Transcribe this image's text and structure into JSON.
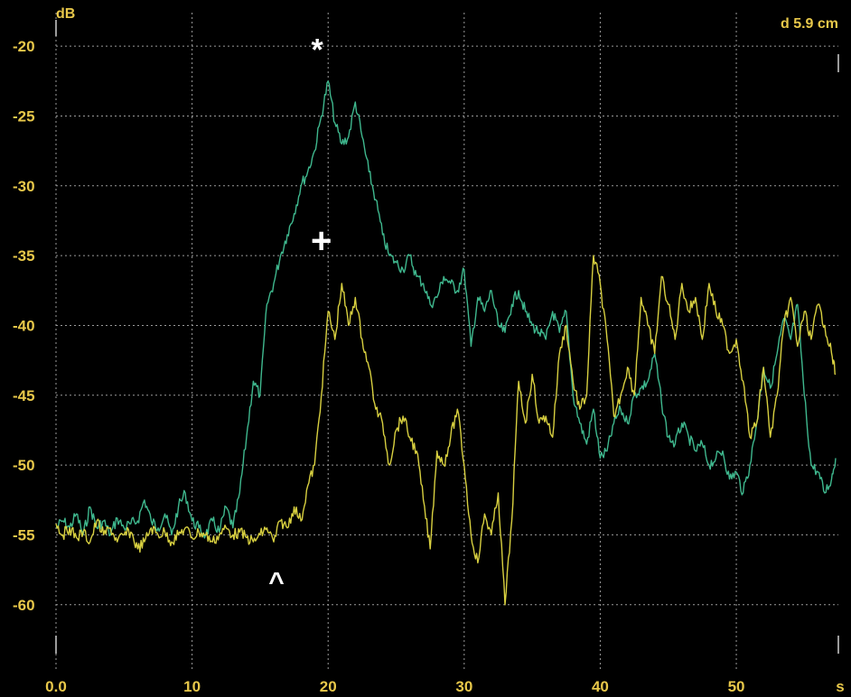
{
  "chart_data": {
    "type": "line",
    "xlabel": "s",
    "ylabel": "dB",
    "top_right_label": "d 5.9 cm",
    "xlim": [
      0,
      57.5
    ],
    "ylim": [
      -64.8,
      -17.6
    ],
    "x_ticks": [
      "0.0",
      "10",
      "20",
      "30",
      "40",
      "50",
      "s"
    ],
    "y_ticks": [
      "-20",
      "-25",
      "-30",
      "-35",
      "-40",
      "-45",
      "-50",
      "-55",
      "-60"
    ],
    "grid": true,
    "colors": {
      "background": "#000000",
      "axis_text": "#e8c84a",
      "annotations": "#ffffff"
    },
    "annotations": [
      {
        "text": "*",
        "x": 19.2,
        "y": -21.0
      },
      {
        "text": "+",
        "x": 19.5,
        "y": -34.8
      },
      {
        "text": "^",
        "x": 16.2,
        "y": -59.0
      }
    ],
    "series": [
      {
        "color": "#3fb88e",
        "x": [
          0,
          0.5,
          1,
          1.5,
          2,
          2.5,
          3,
          3.5,
          4,
          4.5,
          5,
          5.5,
          6,
          6.5,
          7,
          7.5,
          8,
          8.5,
          9,
          9.5,
          10,
          10.5,
          11,
          11.5,
          12,
          12.5,
          13,
          13.5,
          14,
          14.5,
          15,
          15.5,
          16,
          16.5,
          17,
          17.5,
          18,
          18.5,
          19,
          19.5,
          20,
          20.5,
          21,
          21.5,
          22,
          22.5,
          23,
          23.5,
          24,
          24.5,
          25,
          25.5,
          26,
          26.5,
          27,
          27.5,
          28,
          28.5,
          29,
          29.5,
          30,
          30.5,
          31,
          31.5,
          32,
          32.5,
          33,
          33.5,
          34,
          34.5,
          35,
          35.5,
          36,
          36.5,
          37,
          37.5,
          38,
          38.5,
          39,
          39.5,
          40,
          40.5,
          41,
          41.5,
          42,
          42.5,
          43,
          43.5,
          44,
          44.5,
          45,
          45.5,
          46,
          46.5,
          47,
          47.5,
          48,
          48.5,
          49,
          49.5,
          50,
          50.5,
          51,
          51.5,
          52,
          52.5,
          53,
          53.5,
          54,
          54.5,
          55,
          55.5,
          56,
          56.5,
          57,
          57.3
        ],
        "values": [
          -54.5,
          -54,
          -54.5,
          -53.5,
          -55,
          -53,
          -54.5,
          -54,
          -55,
          -53.8,
          -54.5,
          -54.2,
          -54,
          -52.5,
          -54,
          -54.5,
          -53.5,
          -55,
          -53,
          -52,
          -54,
          -54.5,
          -55,
          -54,
          -54.8,
          -53,
          -54.5,
          -52,
          -48,
          -44,
          -45,
          -38.5,
          -37,
          -35,
          -33.5,
          -32,
          -30,
          -29,
          -27.5,
          -25,
          -22.5,
          -25.5,
          -27,
          -26.5,
          -24,
          -26.5,
          -29,
          -31,
          -33.5,
          -35,
          -35.5,
          -36,
          -35,
          -36.5,
          -37,
          -38.5,
          -38,
          -36.5,
          -37,
          -37.5,
          -36,
          -41.5,
          -38,
          -39,
          -37.5,
          -40,
          -40.5,
          -38.5,
          -37.5,
          -39,
          -40,
          -40.5,
          -41,
          -39,
          -40.5,
          -39,
          -45,
          -47,
          -48.5,
          -46,
          -49.5,
          -49,
          -47,
          -46,
          -47,
          -45,
          -44.5,
          -44,
          -42,
          -45.5,
          -48,
          -48.5,
          -47,
          -48,
          -49,
          -48.5,
          -50,
          -49.5,
          -49,
          -51,
          -50.5,
          -52,
          -50,
          -47,
          -43,
          -44.5,
          -42,
          -39.5,
          -41,
          -38.5,
          -45,
          -50,
          -50.5,
          -52,
          -51,
          -49.5
        ]
      },
      {
        "color": "#d8d040",
        "x": [
          0,
          0.5,
          1,
          1.5,
          2,
          2.5,
          3,
          3.5,
          4,
          4.5,
          5,
          5.5,
          6,
          6.5,
          7,
          7.5,
          8,
          8.5,
          9,
          9.5,
          10,
          10.5,
          11,
          11.5,
          12,
          12.5,
          13,
          13.5,
          14,
          14.5,
          15,
          15.5,
          16,
          16.5,
          17,
          17.5,
          18,
          18.5,
          19,
          19.5,
          20,
          20.5,
          21,
          21.5,
          22,
          22.5,
          23,
          23.5,
          24,
          24.5,
          25,
          25.5,
          26,
          26.5,
          27,
          27.5,
          28,
          28.5,
          29,
          29.5,
          30,
          30.5,
          31,
          31.5,
          32,
          32.5,
          33,
          33.5,
          34,
          34.5,
          35,
          35.5,
          36,
          36.5,
          37,
          37.5,
          38,
          38.5,
          39,
          39.5,
          40,
          40.5,
          41,
          41.5,
          42,
          42.5,
          43,
          43.5,
          44,
          44.5,
          45,
          45.5,
          46,
          46.5,
          47,
          47.5,
          48,
          48.5,
          49,
          49.5,
          50,
          50.5,
          51,
          51.5,
          52,
          52.5,
          53,
          53.5,
          54,
          54.5,
          55,
          55.5,
          56,
          56.5,
          57,
          57.3
        ],
        "values": [
          -54.2,
          -55,
          -54.5,
          -55.2,
          -54.8,
          -55.5,
          -54,
          -55,
          -54.5,
          -55.5,
          -55,
          -54.8,
          -56,
          -55.5,
          -54.5,
          -55,
          -54.8,
          -55.5,
          -55,
          -54.5,
          -55.2,
          -54.8,
          -55,
          -55.5,
          -55,
          -54.5,
          -55,
          -54.8,
          -55.2,
          -55.5,
          -55,
          -54.5,
          -55.5,
          -54,
          -54.5,
          -53,
          -54,
          -51.5,
          -50,
          -45,
          -39,
          -41,
          -37,
          -40,
          -38,
          -41,
          -43,
          -46,
          -47,
          -50,
          -47.5,
          -46.5,
          -48,
          -49,
          -52.5,
          -56,
          -49,
          -50,
          -48,
          -46,
          -50,
          -55,
          -57,
          -53.5,
          -55,
          -52,
          -60,
          -54,
          -44,
          -47,
          -43.5,
          -47,
          -46.5,
          -48,
          -42,
          -40,
          -44,
          -46,
          -45,
          -35,
          -37,
          -41,
          -46.5,
          -45,
          -43,
          -45,
          -38,
          -40,
          -42,
          -36.5,
          -38.5,
          -41,
          -37,
          -39,
          -38,
          -41,
          -37,
          -39,
          -40,
          -42,
          -41,
          -44,
          -48,
          -47,
          -43,
          -48,
          -45,
          -40,
          -38,
          -41.5,
          -39,
          -41,
          -38.5,
          -40,
          -42,
          -43.5
        ]
      }
    ]
  }
}
